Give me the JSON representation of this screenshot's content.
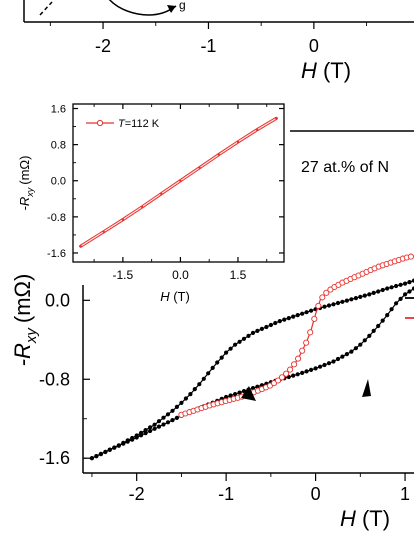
{
  "chart_data": [
    {
      "type": "line",
      "panel": "top-cropped",
      "x_ticks": [
        "-2",
        "-1",
        "0"
      ],
      "x_tick_values": [
        -2,
        -1,
        0
      ],
      "xlabel_main": "H",
      "xlabel_unit": "(T)",
      "xlim": [
        -2.75,
        0.95
      ],
      "annotation_glyph": "g"
    },
    {
      "type": "line",
      "panel": "main",
      "annotation": "27 at.% of N",
      "xlabel_main": "H",
      "xlabel_unit": "(T)",
      "ylabel_prefix": "-R",
      "ylabel_sub": "xy",
      "ylabel_unit": "(mΩ)",
      "xlim": [
        -2.6,
        1.1
      ],
      "ylim": [
        -1.75,
        0.5
      ],
      "x_ticks": [
        "-2",
        "-1",
        "0",
        "1"
      ],
      "x_tick_values": [
        -2,
        -1,
        0,
        1
      ],
      "y_ticks": [
        "0.0",
        "-0.8",
        "-1.6"
      ],
      "y_tick_values": [
        0.0,
        -0.8,
        -1.6
      ],
      "series": [
        {
          "marker": "filled-circle",
          "color": "#000000",
          "branch": "upper",
          "x": [
            -2.5,
            -2.2,
            -2.0,
            -1.8,
            -1.6,
            -1.5,
            -1.4,
            -1.3,
            -1.2,
            -1.1,
            -1.0,
            -0.9,
            -0.8,
            -0.7,
            -0.6,
            -0.5,
            -0.4,
            -0.3,
            -0.2,
            -0.1,
            0.0,
            0.2,
            0.4,
            0.6,
            0.8,
            1.0,
            1.1
          ],
          "y": [
            -1.6,
            -1.47,
            -1.37,
            -1.26,
            -1.12,
            -1.04,
            -0.95,
            -0.85,
            -0.74,
            -0.63,
            -0.53,
            -0.45,
            -0.39,
            -0.33,
            -0.29,
            -0.25,
            -0.21,
            -0.18,
            -0.15,
            -0.12,
            -0.09,
            -0.04,
            0.01,
            0.06,
            0.12,
            0.17,
            0.2
          ]
        },
        {
          "marker": "filled-circle",
          "color": "#000000",
          "branch": "lower",
          "x": [
            -2.5,
            -2.0,
            -1.5,
            -1.0,
            -0.5,
            -0.2,
            0.0,
            0.2,
            0.4,
            0.5,
            0.6,
            0.7,
            0.8,
            0.9,
            1.0,
            1.1
          ],
          "y": [
            -1.6,
            -1.39,
            -1.17,
            -0.98,
            -0.83,
            -0.75,
            -0.69,
            -0.62,
            -0.52,
            -0.45,
            -0.36,
            -0.26,
            -0.15,
            -0.03,
            0.06,
            0.12
          ]
        },
        {
          "marker": "open-circle",
          "color": "#e8322e",
          "x": [
            -1.5,
            -1.2,
            -1.0,
            -0.8,
            -0.6,
            -0.5,
            -0.4,
            -0.3,
            -0.2,
            -0.15,
            -0.1,
            -0.05,
            0.0,
            0.05,
            0.1,
            0.15,
            0.2,
            0.3,
            0.4,
            0.5,
            0.6,
            0.7,
            0.8,
            0.9,
            1.0,
            1.1
          ],
          "y": [
            -1.16,
            -1.07,
            -1.02,
            -0.97,
            -0.9,
            -0.86,
            -0.8,
            -0.72,
            -0.6,
            -0.51,
            -0.42,
            -0.3,
            -0.14,
            0.0,
            0.06,
            0.1,
            0.13,
            0.18,
            0.22,
            0.26,
            0.3,
            0.34,
            0.37,
            0.4,
            0.43,
            0.45
          ]
        }
      ]
    },
    {
      "type": "line",
      "panel": "inset",
      "legend": "T=112 K",
      "legend_prefix": "T",
      "legend_rest": "=112 K",
      "xlabel_main": "H",
      "xlabel_unit": "(T)",
      "ylabel_prefix": "-R",
      "ylabel_sub": "xy",
      "ylabel_unit": "(mΩ)",
      "xlim": [
        -2.8,
        2.7
      ],
      "ylim": [
        -1.8,
        1.7
      ],
      "x_ticks": [
        "-1.5",
        "0.0",
        "1.5"
      ],
      "x_tick_values": [
        -1.5,
        0.0,
        1.5
      ],
      "y_ticks": [
        "1.6",
        "0.8",
        "0.0",
        "-0.8",
        "-1.6"
      ],
      "y_tick_values": [
        1.6,
        0.8,
        0.0,
        -0.8,
        -1.6
      ],
      "series": [
        {
          "marker": "open-circle",
          "color": "#e8322e",
          "x": [
            -2.6,
            -2.0,
            -1.5,
            -1.0,
            -0.5,
            0.0,
            0.5,
            1.0,
            1.5,
            2.0,
            2.5
          ],
          "y": [
            -1.45,
            -1.13,
            -0.86,
            -0.58,
            -0.29,
            0.0,
            0.29,
            0.58,
            0.86,
            1.13,
            1.38
          ]
        }
      ]
    }
  ]
}
